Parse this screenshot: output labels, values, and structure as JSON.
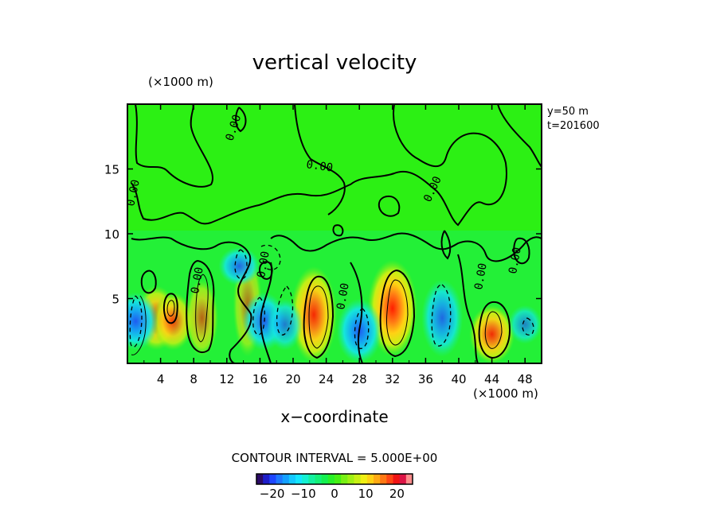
{
  "chart_data": {
    "type": "heatmap",
    "title": "vertical velocity",
    "xlabel": "x−coordinate",
    "x_units": "(×1000 m)",
    "y_units": "(×1000 m)",
    "xlim": [
      0,
      50
    ],
    "ylim": [
      0,
      20
    ],
    "x_ticks": [
      4,
      8,
      12,
      16,
      20,
      24,
      28,
      32,
      36,
      40,
      44,
      48
    ],
    "x_tick_labels": [
      "4",
      "8",
      "12",
      "16",
      "20",
      "24",
      "28",
      "32",
      "36",
      "40",
      "44",
      "48"
    ],
    "y_ticks": [
      5,
      10,
      15
    ],
    "y_tick_labels": [
      "5",
      "10",
      "15"
    ],
    "info_lines": [
      "y=50 m",
      "t=201600"
    ],
    "contour_interval_text": "CONTOUR INTERVAL = 5.000E+00",
    "contour_labels": [
      "0.00",
      "0.00",
      "0.00",
      "0.00",
      "0.00",
      "0.00",
      "0.00",
      "0.00",
      "0.00"
    ],
    "colorbar": {
      "min": -25,
      "max": 25,
      "ticks": [
        -20,
        -10,
        0,
        10,
        20
      ],
      "tick_labels": [
        "−20",
        "−10",
        "0",
        "10",
        "20"
      ],
      "colors": [
        "#2b0a66",
        "#1e1ec8",
        "#1e46ff",
        "#1e78ff",
        "#14a0ff",
        "#14c8ff",
        "#14e6ff",
        "#14f0d2",
        "#14f0a0",
        "#14f078",
        "#14f050",
        "#28f028",
        "#46f014",
        "#78f014",
        "#a0f014",
        "#c8f014",
        "#f0f014",
        "#ffd214",
        "#ffaa14",
        "#ff7814",
        "#ff4614",
        "#f01414",
        "#dc1446",
        "#ff8c8c"
      ]
    },
    "updrafts": [
      {
        "name": "updraft",
        "x": 3.5,
        "y_min": 1.5,
        "y_max": 5.5,
        "peak": 17
      },
      {
        "name": "updraft",
        "x": 5.5,
        "y_min": 1.5,
        "y_max": 5.0,
        "peak": 16
      },
      {
        "name": "updraft",
        "x": 9.0,
        "y_min": 1.0,
        "y_max": 6.0,
        "peak": 9
      },
      {
        "name": "updraft",
        "x": 14.5,
        "y_min": 1.0,
        "y_max": 8.0,
        "peak": 6
      },
      {
        "name": "updraft",
        "x": 22.5,
        "y_min": 0.5,
        "y_max": 7.0,
        "peak": 21
      },
      {
        "name": "updraft",
        "x": 32.0,
        "y_min": 1.0,
        "y_max": 7.5,
        "peak": 24
      },
      {
        "name": "updraft",
        "x": 44.0,
        "y_min": 0.5,
        "y_max": 4.0,
        "peak": 20
      }
    ],
    "downdrafts": [
      {
        "name": "downdraft",
        "x": 1.0,
        "y_min": 1.5,
        "y_max": 5.0,
        "peak": -12
      },
      {
        "name": "downdraft",
        "x": 13.5,
        "y_min": 6.5,
        "y_max": 8.5,
        "peak": -10
      },
      {
        "name": "downdraft",
        "x": 16.5,
        "y_min": 1.5,
        "y_max": 5.0,
        "peak": -11
      },
      {
        "name": "downdraft",
        "x": 19.0,
        "y_min": 1.5,
        "y_max": 4.5,
        "peak": -7
      },
      {
        "name": "downdraft",
        "x": 28.0,
        "y_min": 0.5,
        "y_max": 4.5,
        "peak": -12
      },
      {
        "name": "downdraft",
        "x": 38.0,
        "y_min": 1.0,
        "y_max": 6.0,
        "peak": -10
      },
      {
        "name": "downdraft",
        "x": 48.0,
        "y_min": 2.0,
        "y_max": 4.0,
        "peak": -6
      }
    ]
  }
}
